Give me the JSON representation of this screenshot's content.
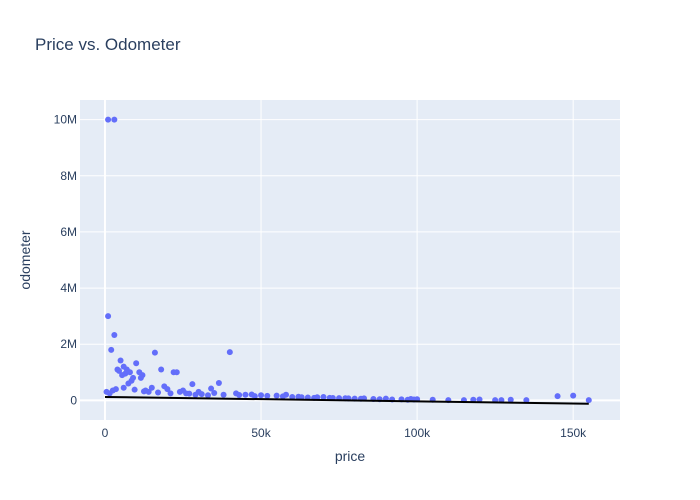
{
  "chart_data": {
    "type": "scatter",
    "title": "Price vs. Odometer",
    "xlabel": "price",
    "ylabel": "odometer",
    "xlim": [
      -8000,
      165000
    ],
    "ylim": [
      -700000,
      10700000
    ],
    "xticks": [
      0,
      50000,
      100000,
      150000
    ],
    "xtick_labels": [
      "0",
      "50k",
      "100k",
      "150k"
    ],
    "yticks": [
      0,
      2000000,
      4000000,
      6000000,
      8000000,
      10000000
    ],
    "ytick_labels": [
      "0",
      "2M",
      "4M",
      "6M",
      "8M",
      "10M"
    ],
    "grid": true,
    "legend": "none",
    "colors": {
      "points": "#636efa",
      "trend": "#000000",
      "plot_bg": "#e5ecf6",
      "grid": "#ffffff"
    },
    "series": [
      {
        "kind": "points",
        "x": [
          1000,
          3000,
          1000,
          3000,
          2000,
          4000,
          5000,
          6000,
          7000,
          4500,
          5500,
          6500,
          8000,
          9000,
          10000,
          11000,
          7500,
          8500,
          16000,
          18000,
          12000,
          11500,
          19000,
          22000,
          23000,
          28000,
          34000,
          36500,
          40000,
          30000,
          25000,
          20000,
          15000,
          14000,
          13000,
          17000,
          21000,
          24000,
          26000,
          29000,
          31000,
          33000,
          35000,
          38000,
          42000,
          45000,
          48000,
          50000,
          52000,
          55000,
          58000,
          60000,
          62000,
          65000,
          68000,
          70000,
          72000,
          75000,
          78000,
          80000,
          83000,
          86000,
          88000,
          90000,
          92000,
          97000,
          98000,
          100000,
          105000,
          110000,
          115000,
          118000,
          120000,
          125000,
          127000,
          130000,
          135000,
          145000,
          150000,
          155000,
          500,
          1500,
          2500,
          3500,
          6000,
          9500,
          12500,
          27000,
          43000,
          47000,
          57000,
          63000,
          67000,
          73000,
          77000,
          82000,
          95000,
          99000
        ],
        "y": [
          10000000,
          10000000,
          3000000,
          2330000,
          1800000,
          1100000,
          1420000,
          1200000,
          1100000,
          1050000,
          900000,
          950000,
          1000000,
          800000,
          1320000,
          1000000,
          600000,
          700000,
          1700000,
          1100000,
          900000,
          800000,
          500000,
          1000000,
          1000000,
          580000,
          420000,
          620000,
          1720000,
          300000,
          350000,
          400000,
          450000,
          300000,
          350000,
          280000,
          250000,
          300000,
          250000,
          200000,
          220000,
          180000,
          260000,
          200000,
          250000,
          200000,
          150000,
          180000,
          160000,
          170000,
          200000,
          120000,
          130000,
          100000,
          110000,
          120000,
          90000,
          80000,
          70000,
          60000,
          70000,
          50000,
          40000,
          60000,
          30000,
          20000,
          50000,
          40000,
          20000,
          10000,
          10000,
          20000,
          30000,
          10000,
          10000,
          20000,
          10000,
          150000,
          170000,
          10000,
          300000,
          250000,
          350000,
          400000,
          450000,
          380000,
          320000,
          240000,
          190000,
          210000,
          140000,
          110000,
          90000,
          85000,
          75000,
          55000,
          35000,
          30000
        ]
      },
      {
        "kind": "trend",
        "x": [
          0,
          155000
        ],
        "y": [
          120000,
          -120000
        ]
      }
    ]
  }
}
